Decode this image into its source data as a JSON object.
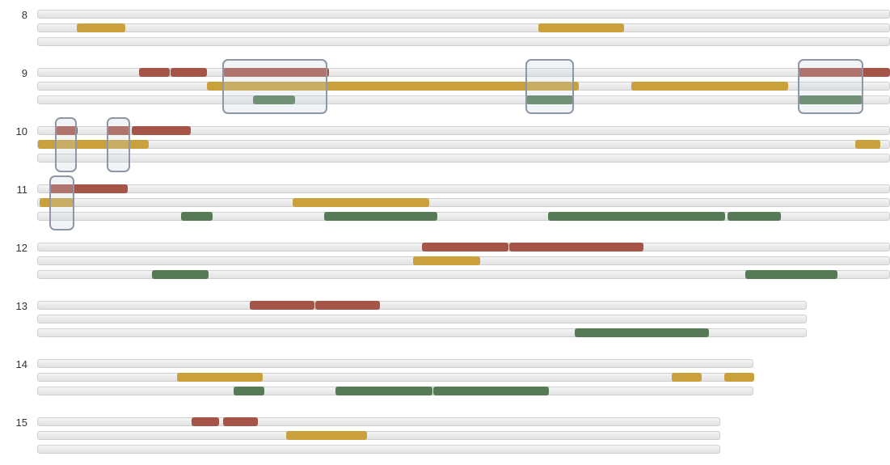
{
  "rows": [
    {
      "label": "8"
    },
    {
      "label": "9"
    },
    {
      "label": "10"
    },
    {
      "label": "11"
    },
    {
      "label": "12"
    },
    {
      "label": "13"
    },
    {
      "label": "14"
    },
    {
      "label": "15"
    }
  ]
}
